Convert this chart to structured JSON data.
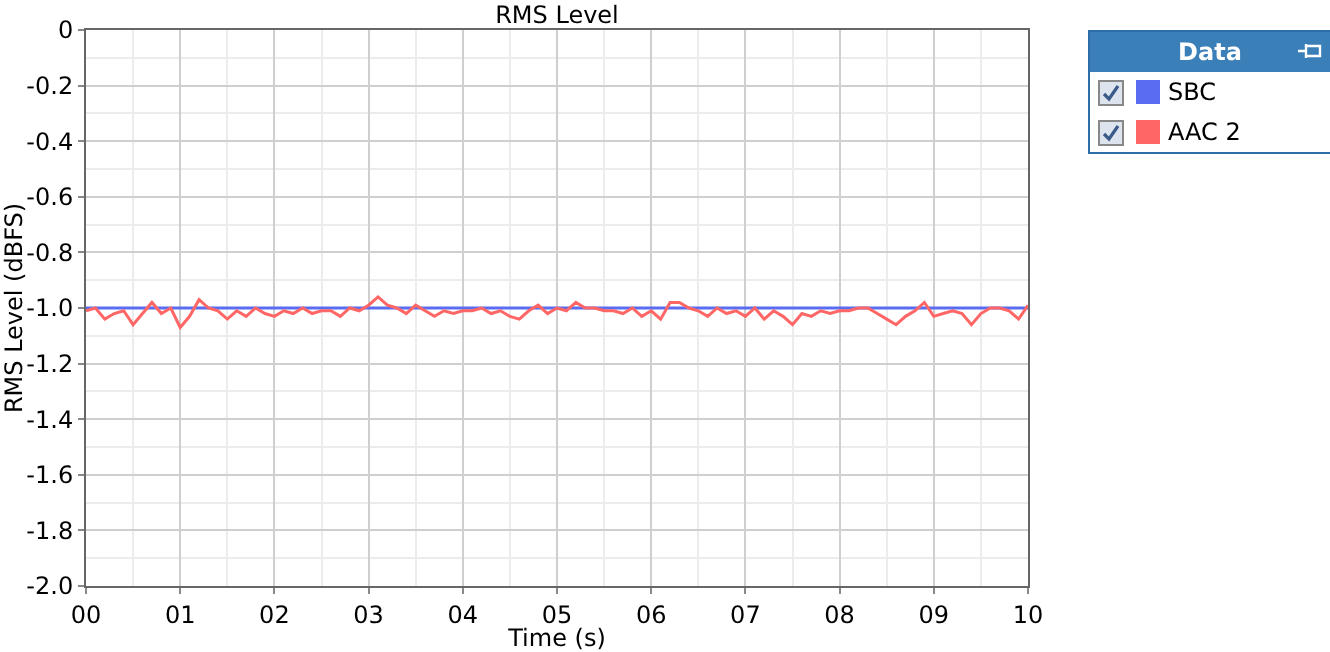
{
  "chart_data": {
    "type": "line",
    "title": "RMS Level",
    "xlabel": "Time (s)",
    "ylabel": "RMS Level (dBFS)",
    "legend_title": "Data",
    "x": [
      0,
      0.1,
      0.2,
      0.3,
      0.4,
      0.5,
      0.6,
      0.7,
      0.8,
      0.9,
      1,
      1.1,
      1.2,
      1.3,
      1.4,
      1.5,
      1.6,
      1.7,
      1.8,
      1.9,
      2,
      2.1,
      2.2,
      2.3,
      2.4,
      2.5,
      2.6,
      2.7,
      2.8,
      2.9,
      3,
      3.1,
      3.2,
      3.3,
      3.4,
      3.5,
      3.6,
      3.7,
      3.8,
      3.9,
      4,
      4.1,
      4.2,
      4.3,
      4.4,
      4.5,
      4.6,
      4.7,
      4.8,
      4.9,
      5,
      5.1,
      5.2,
      5.3,
      5.4,
      5.5,
      5.6,
      5.7,
      5.8,
      5.9,
      6,
      6.1,
      6.2,
      6.3,
      6.4,
      6.5,
      6.6,
      6.7,
      6.8,
      6.9,
      7,
      7.1,
      7.2,
      7.3,
      7.4,
      7.5,
      7.6,
      7.7,
      7.8,
      7.9,
      8,
      8.1,
      8.2,
      8.3,
      8.4,
      8.5,
      8.6,
      8.7,
      8.8,
      8.9,
      9,
      9.1,
      9.2,
      9.3,
      9.4,
      9.5,
      9.6,
      9.7,
      9.8,
      9.9,
      10
    ],
    "series": [
      {
        "name": "SBC",
        "color": "#5a6cf2",
        "x": [
          0,
          10
        ],
        "values": [
          -1.0,
          -1.0
        ]
      },
      {
        "name": "AAC 2",
        "color": "#ff6666",
        "values": [
          -1.01,
          -1.0,
          -1.04,
          -1.02,
          -1.01,
          -1.06,
          -1.02,
          -0.98,
          -1.02,
          -1.0,
          -1.07,
          -1.03,
          -0.97,
          -1.0,
          -1.01,
          -1.04,
          -1.01,
          -1.03,
          -1.0,
          -1.02,
          -1.03,
          -1.01,
          -1.02,
          -1.0,
          -1.02,
          -1.01,
          -1.01,
          -1.03,
          -1.0,
          -1.01,
          -0.99,
          -0.96,
          -0.99,
          -1.0,
          -1.02,
          -0.99,
          -1.01,
          -1.03,
          -1.01,
          -1.02,
          -1.01,
          -1.01,
          -1.0,
          -1.02,
          -1.01,
          -1.03,
          -1.04,
          -1.01,
          -0.99,
          -1.02,
          -1.0,
          -1.01,
          -0.98,
          -1.0,
          -1.0,
          -1.01,
          -1.01,
          -1.02,
          -1.0,
          -1.03,
          -1.01,
          -1.04,
          -0.98,
          -0.98,
          -1.0,
          -1.01,
          -1.03,
          -1.0,
          -1.02,
          -1.01,
          -1.03,
          -1.0,
          -1.04,
          -1.01,
          -1.03,
          -1.06,
          -1.02,
          -1.03,
          -1.01,
          -1.02,
          -1.01,
          -1.01,
          -1.0,
          -1.0,
          -1.02,
          -1.04,
          -1.06,
          -1.03,
          -1.01,
          -0.98,
          -1.03,
          -1.02,
          -1.01,
          -1.02,
          -1.06,
          -1.02,
          -1.0,
          -1.0,
          -1.01,
          -1.04,
          -0.99
        ]
      }
    ],
    "xlim": [
      0,
      10
    ],
    "xticks": [
      {
        "value": 0,
        "label": "00"
      },
      {
        "value": 1,
        "label": "01"
      },
      {
        "value": 2,
        "label": "02"
      },
      {
        "value": 3,
        "label": "03"
      },
      {
        "value": 4,
        "label": "04"
      },
      {
        "value": 5,
        "label": "05"
      },
      {
        "value": 6,
        "label": "06"
      },
      {
        "value": 7,
        "label": "07"
      },
      {
        "value": 8,
        "label": "08"
      },
      {
        "value": 9,
        "label": "09"
      },
      10
    ],
    "ylim": [
      -2.0,
      0
    ],
    "yticks": [
      {
        "value": -2,
        "label": "-2.0"
      },
      -1.8,
      -1.6,
      -1.4,
      -1.2,
      {
        "value": -1,
        "label": "-1.0"
      },
      -0.8,
      -0.6,
      -0.4,
      -0.2,
      0
    ],
    "grid": true,
    "legend": "top right",
    "marker": "none",
    "line_style": "solid"
  }
}
